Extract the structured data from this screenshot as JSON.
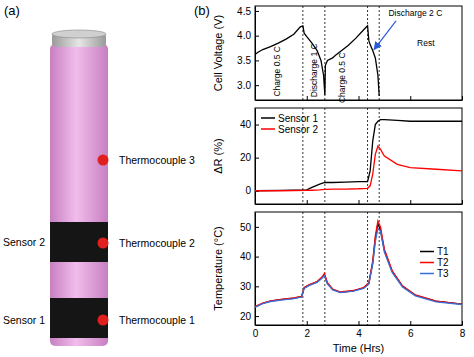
{
  "figure": {
    "panel_labels": [
      "(a)",
      "(b)"
    ],
    "battery": {
      "thermocouples": [
        "Thermocouple 3",
        "Thermocouple 2",
        "Thermocouple 1"
      ],
      "sensors": [
        "Sensor 2",
        "Sensor 1"
      ]
    }
  },
  "chart_data": [
    {
      "type": "line",
      "ylabel": "Cell Voltage (V)",
      "x": [
        0,
        0.1,
        0.3,
        0.6,
        0.9,
        1.2,
        1.5,
        1.75,
        1.85,
        1.9,
        2.0,
        2.2,
        2.4,
        2.55,
        2.65,
        2.7,
        2.72,
        2.8,
        3.0,
        3.1,
        3.3,
        3.6,
        3.9,
        4.2,
        4.35,
        4.4,
        4.45,
        4.55,
        4.65,
        4.75,
        4.8
      ],
      "series": [
        {
          "color": "#000000",
          "values": [
            3.62,
            3.66,
            3.72,
            3.78,
            3.85,
            3.93,
            4.03,
            4.18,
            4.2,
            4.05,
            3.98,
            3.85,
            3.7,
            3.5,
            3.2,
            2.8,
            3.4,
            3.5,
            3.55,
            3.6,
            3.68,
            3.8,
            3.95,
            4.12,
            4.2,
            3.9,
            3.82,
            3.7,
            3.55,
            3.2,
            2.78
          ]
        }
      ],
      "xlim": [
        0,
        8
      ],
      "xticks": [
        0,
        2,
        4,
        6,
        8
      ],
      "ylim": [
        2.7,
        4.6
      ],
      "yticks": [
        {
          "value": 3,
          "label": "3.0"
        },
        3.5,
        {
          "value": 4,
          "label": "4.0"
        },
        4.5
      ],
      "tick_labels": "y",
      "vlines": [
        1.85,
        2.7,
        4.35,
        4.8
      ],
      "annotations": [
        "Charge 0.5 C",
        "Discharge 1 C",
        "Charge 0.5 C",
        "Discharge 2 C",
        "Rest"
      ]
    },
    {
      "type": "line",
      "ylabel": "ΔR (%)",
      "x": [
        0,
        1,
        2,
        2.2,
        2.5,
        2.7,
        3,
        3.5,
        4,
        4.35,
        4.45,
        4.55,
        4.65,
        4.75,
        4.85,
        5,
        5.5,
        6,
        7,
        8
      ],
      "series": [
        {
          "name": "Sensor 1",
          "color": "#000000",
          "values": [
            0,
            0.2,
            0.5,
            2,
            4,
            5,
            5,
            5.2,
            5.5,
            5.5,
            12,
            30,
            40,
            42,
            43,
            43,
            42.5,
            42,
            42,
            42
          ]
        },
        {
          "name": "Sensor 2",
          "color": "#ff0000",
          "values": [
            0,
            0,
            0.2,
            0.3,
            0.5,
            0.8,
            1,
            1,
            1.2,
            1.5,
            3,
            10,
            22,
            27,
            25,
            21,
            16,
            14,
            13,
            12
          ]
        }
      ],
      "xlim": [
        0,
        8
      ],
      "xticks": [
        0,
        2,
        4,
        6,
        8
      ],
      "ylim": [
        -8,
        50
      ],
      "yticks": [
        0,
        20,
        40
      ],
      "tick_labels": "y",
      "legend": "upper left",
      "vlines": [
        1.85,
        2.7,
        4.35,
        4.8
      ]
    },
    {
      "type": "line",
      "ylabel": "Temperature (°C)",
      "xlabel": "Time (Hrs)",
      "x": [
        0,
        0.3,
        0.6,
        1,
        1.5,
        1.8,
        1.9,
        2.1,
        2.4,
        2.6,
        2.68,
        2.8,
        3,
        3.3,
        3.8,
        4.2,
        4.4,
        4.55,
        4.65,
        4.75,
        4.85,
        5,
        5.3,
        5.7,
        6.2,
        7,
        8
      ],
      "series": [
        {
          "name": "T1",
          "color": "#000000",
          "values": [
            23,
            24.3,
            25,
            25.5,
            26,
            26.5,
            29.5,
            30.5,
            31.5,
            33,
            34,
            31,
            29,
            28,
            28.5,
            29.5,
            31,
            38,
            46,
            51,
            49,
            42,
            35,
            30,
            27,
            25,
            24
          ]
        },
        {
          "name": "T2",
          "color": "#ff0000",
          "values": [
            23.2,
            24.4,
            25.1,
            25.6,
            26.1,
            26.6,
            29.6,
            30.6,
            31.6,
            33.2,
            34.3,
            31.2,
            29.1,
            28.1,
            28.6,
            29.6,
            31.2,
            38.5,
            47,
            52,
            50,
            42.5,
            35.3,
            30.2,
            27.1,
            25,
            24
          ]
        },
        {
          "name": "T3",
          "color": "#3a6fd8",
          "values": [
            23,
            24.2,
            24.9,
            25.4,
            25.9,
            26.4,
            29.3,
            30.3,
            31.3,
            32.8,
            33.6,
            30.8,
            28.8,
            27.9,
            28.4,
            29.3,
            30.8,
            37.5,
            45,
            49.5,
            48.5,
            41.5,
            34.7,
            29.8,
            26.8,
            24.8,
            23.9
          ]
        }
      ],
      "xlim": [
        0,
        8
      ],
      "xticks": [
        0,
        2,
        4,
        6,
        8
      ],
      "ylim": [
        17,
        55
      ],
      "yticks": [
        20,
        30,
        40,
        50
      ],
      "legend": "right",
      "vlines": [
        1.85,
        2.7,
        4.35,
        4.8
      ]
    }
  ]
}
